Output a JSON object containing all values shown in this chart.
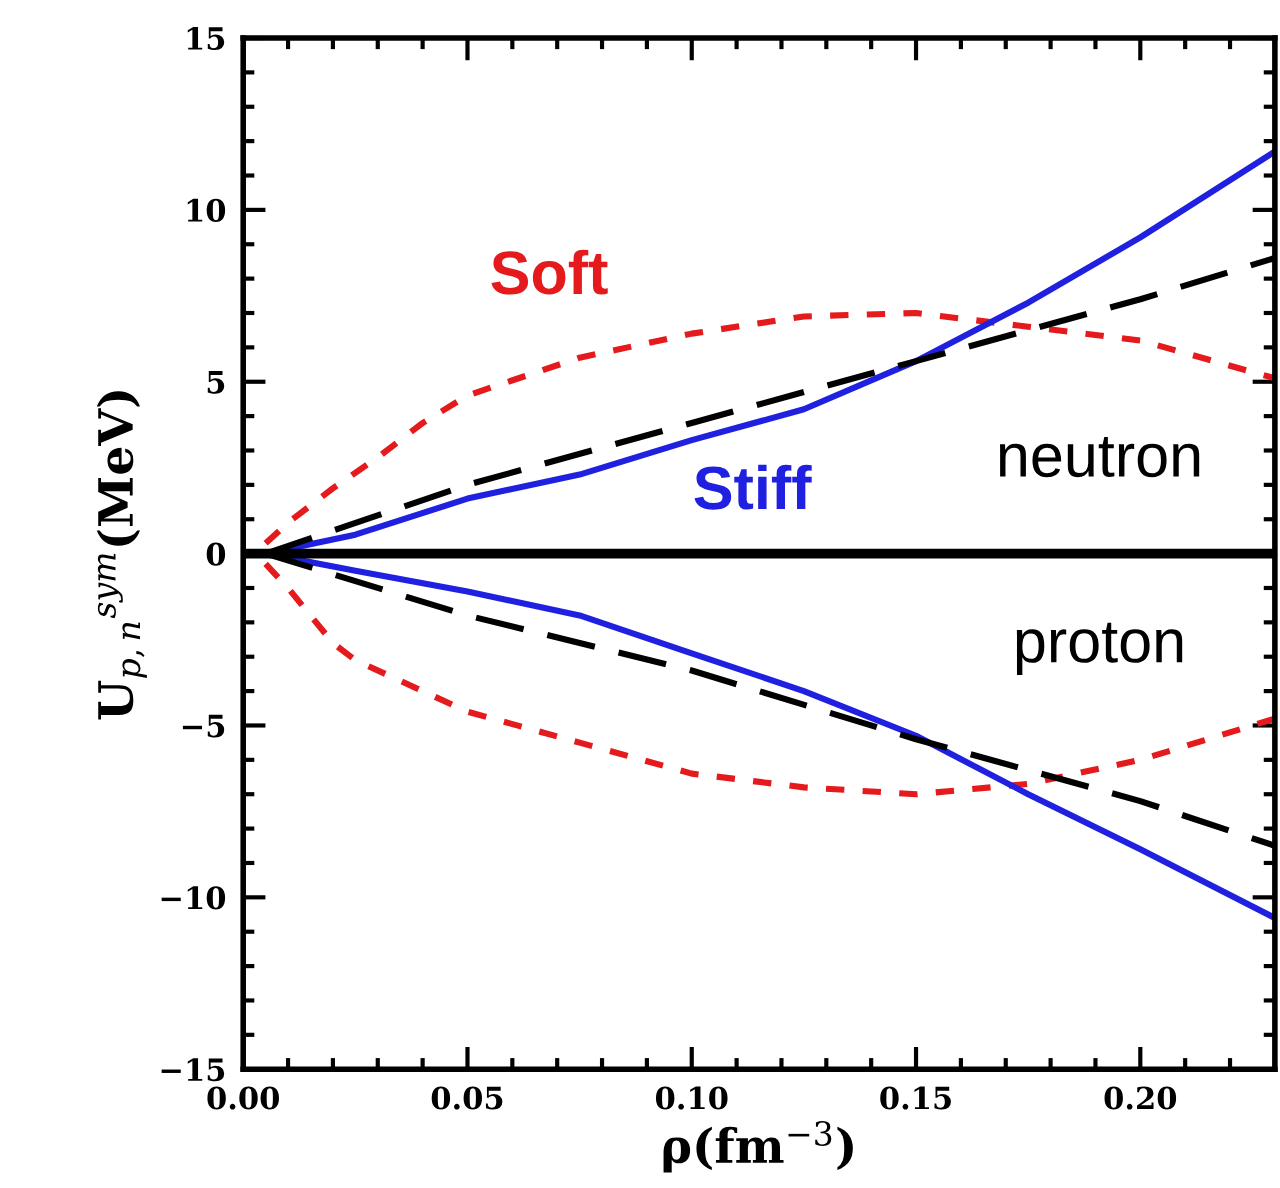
{
  "chart_data": {
    "type": "line",
    "xlabel": "ρ(fm$^{−3}$)",
    "ylabel": "U$_{p,n}$$^{sym}$(MeV)",
    "xlim": [
      0,
      0.23
    ],
    "ylim": [
      -15,
      15
    ],
    "xticks": [
      {
        "value": 0,
        "label": "0.00"
      },
      {
        "value": 0.05,
        "label": "0.05"
      },
      {
        "value": 0.1,
        "label": "0.10"
      },
      {
        "value": 0.15,
        "label": "0.15"
      },
      {
        "value": 0.2,
        "label": "0.20"
      }
    ],
    "yticks": [
      {
        "value": -15,
        "label": "−15"
      },
      {
        "value": -10,
        "label": "−10"
      },
      {
        "value": -5,
        "label": "−5"
      },
      0,
      5,
      10,
      15
    ],
    "grid": false,
    "legend": false,
    "marker": "none",
    "series": [
      {
        "name": "Soft",
        "color": "#e41a1c",
        "line_style": "dotted",
        "x": [
          0.005,
          0.01,
          0.02,
          0.03,
          0.04,
          0.05,
          0.075,
          0.1,
          0.125,
          0.15,
          0.175,
          0.2,
          0.23
        ],
        "values": [
          0.3,
          0.9,
          1.9,
          2.8,
          3.8,
          4.6,
          5.7,
          6.4,
          6.9,
          7.0,
          6.6,
          6.2,
          5.1
        ]
      },
      {
        "color": "#e41a1c",
        "line_style": "dotted",
        "x": [
          0.005,
          0.01,
          0.02,
          0.025,
          0.05,
          0.075,
          0.1,
          0.125,
          0.15,
          0.175,
          0.2,
          0.23
        ],
        "values": [
          -0.3,
          -1.0,
          -2.6,
          -3.1,
          -4.6,
          -5.5,
          -6.4,
          -6.8,
          -7.0,
          -6.7,
          -6.0,
          -4.8
        ]
      },
      {
        "name": "Stiff",
        "color": "#2020e0",
        "line_style": "solid",
        "x": [
          0.005,
          0.025,
          0.05,
          0.075,
          0.1,
          0.125,
          0.15,
          0.175,
          0.2,
          0.23
        ],
        "values": [
          0,
          0.55,
          1.6,
          2.3,
          3.3,
          4.2,
          5.6,
          7.3,
          9.2,
          11.7
        ]
      },
      {
        "color": "#2020e0",
        "line_style": "solid",
        "x": [
          0.005,
          0.025,
          0.05,
          0.075,
          0.1,
          0.125,
          0.15,
          0.175,
          0.2,
          0.23
        ],
        "values": [
          0,
          -0.5,
          -1.1,
          -1.8,
          -2.9,
          -4.0,
          -5.3,
          -7.0,
          -8.6,
          -10.6
        ]
      },
      {
        "color": "#000000",
        "line_style": "dashed",
        "x": [
          0.005,
          0.05,
          0.1,
          0.15,
          0.2,
          0.23
        ],
        "values": [
          0,
          2.0,
          3.8,
          5.6,
          7.4,
          8.6
        ]
      },
      {
        "color": "#000000",
        "line_style": "dashed",
        "x": [
          0.005,
          0.05,
          0.1,
          0.15,
          0.2,
          0.23
        ],
        "values": [
          0,
          -1.8,
          -3.4,
          -5.4,
          -7.2,
          -8.5
        ]
      }
    ],
    "ref_lines": [
      {
        "axis": "y",
        "value": 0,
        "color": "#000000",
        "line_style": "solid"
      }
    ],
    "annotations": [
      "neutron",
      "proton"
    ]
  }
}
